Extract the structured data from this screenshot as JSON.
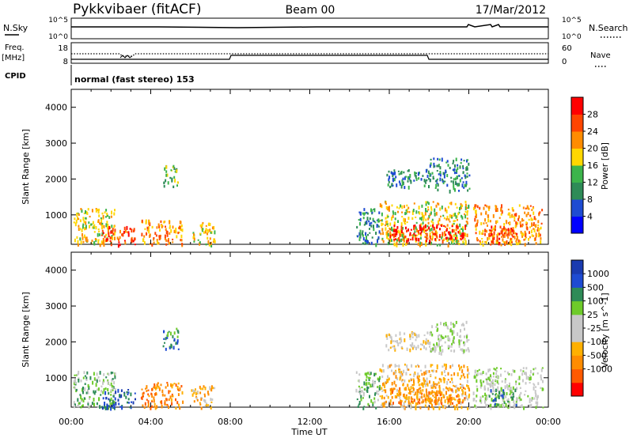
{
  "header": {
    "station": "Pykkvibaer (fitACF)",
    "beam": "Beam 00",
    "date": "17/Mar/2012"
  },
  "panels": {
    "nsky_label": "N.Sky",
    "nsearch_label": "N.Search",
    "nsky_ticks": [
      "10^5",
      "10^0"
    ],
    "nsearch_ticks": [
      "10^5",
      "10^0"
    ],
    "freq_label": "Freq.",
    "freq_unit": "[MHz]",
    "freq_ticks": [
      "18",
      "8"
    ],
    "nave_label": "Nave",
    "nave_ticks": [
      "60",
      "0"
    ],
    "cpid_label": "CPID",
    "cpid_text": "normal (fast stereo) 153"
  },
  "colors": {
    "power": [
      "#0000ff",
      "#1e4bd2",
      "#2e8b57",
      "#3cb44b",
      "#ffd700",
      "#ff8c00",
      "#ff4500",
      "#ff0000"
    ],
    "velocity": [
      "#ff0000",
      "#ff5a00",
      "#ff8c00",
      "#ffb000",
      "#c8c8c8",
      "#c8c8c8",
      "#6ecb2a",
      "#2e8b57",
      "#1e4bd2",
      "#1a3bb0"
    ]
  },
  "chart_data": [
    {
      "type": "heatmap",
      "panel": "power",
      "xlabel": "",
      "ylabel": "Slant Range [km]",
      "ylim": [
        180,
        4500
      ],
      "yticks": [
        "1000",
        "2000",
        "3000",
        "4000"
      ],
      "colorbar_label": "Power [dB]",
      "colorbar_ticks": [
        "4",
        "8",
        "12",
        "16",
        "20",
        "24",
        "28"
      ],
      "blobs": [
        {
          "t0": 0.1,
          "t1": 2.2,
          "r0": 180,
          "r1": 1200,
          "level": 4
        },
        {
          "t0": 1.5,
          "t1": 3.2,
          "r0": 180,
          "r1": 700,
          "level": 6
        },
        {
          "t0": 3.5,
          "t1": 5.6,
          "r0": 180,
          "r1": 900,
          "level": 5
        },
        {
          "t0": 4.6,
          "t1": 5.4,
          "r0": 1800,
          "r1": 2400,
          "level": 3
        },
        {
          "t0": 6.0,
          "t1": 7.2,
          "r0": 180,
          "r1": 800,
          "level": 4
        },
        {
          "t0": 14.3,
          "t1": 15.5,
          "r0": 180,
          "r1": 1200,
          "level": 2
        },
        {
          "t0": 15.5,
          "t1": 20.0,
          "r0": 180,
          "r1": 1400,
          "level": 4
        },
        {
          "t0": 16.0,
          "t1": 19.8,
          "r0": 300,
          "r1": 750,
          "level": 7
        },
        {
          "t0": 15.8,
          "t1": 18.0,
          "r0": 1800,
          "r1": 2300,
          "level": 2
        },
        {
          "t0": 18.0,
          "t1": 20.0,
          "r0": 1700,
          "r1": 2600,
          "level": 2
        },
        {
          "t0": 20.2,
          "t1": 23.7,
          "r0": 180,
          "r1": 1300,
          "level": 5
        },
        {
          "t0": 21.0,
          "t1": 22.4,
          "r0": 250,
          "r1": 700,
          "level": 6
        }
      ]
    },
    {
      "type": "heatmap",
      "panel": "velocity",
      "xlabel": "Time UT",
      "ylabel": "Slant Range [km]",
      "ylim": [
        180,
        4500
      ],
      "yticks": [
        "1000",
        "2000",
        "3000",
        "4000"
      ],
      "xticks": [
        "00:00",
        "04:00",
        "08:00",
        "12:00",
        "16:00",
        "20:00",
        "00:00"
      ],
      "colorbar_label": "Velocity [m s^-1]",
      "colorbar_ticks": [
        "1000",
        "500",
        "100",
        "25",
        "-25",
        "-100",
        "-500",
        "-1000"
      ],
      "blobs": [
        {
          "t0": 0.1,
          "t1": 2.2,
          "r0": 180,
          "r1": 1200,
          "level": 6
        },
        {
          "t0": 1.5,
          "t1": 3.2,
          "r0": 180,
          "r1": 700,
          "level": 8
        },
        {
          "t0": 3.5,
          "t1": 5.6,
          "r0": 180,
          "r1": 900,
          "level": 2
        },
        {
          "t0": 4.6,
          "t1": 5.4,
          "r0": 1800,
          "r1": 2400,
          "level": 7
        },
        {
          "t0": 6.0,
          "t1": 7.2,
          "r0": 180,
          "r1": 800,
          "level": 3
        },
        {
          "t0": 14.3,
          "t1": 15.5,
          "r0": 180,
          "r1": 1200,
          "level": 6
        },
        {
          "t0": 15.5,
          "t1": 20.0,
          "r0": 180,
          "r1": 1400,
          "level": 3
        },
        {
          "t0": 16.0,
          "t1": 19.8,
          "r0": 300,
          "r1": 750,
          "level": 2
        },
        {
          "t0": 15.8,
          "t1": 18.0,
          "r0": 1800,
          "r1": 2300,
          "level": 4
        },
        {
          "t0": 18.0,
          "t1": 20.0,
          "r0": 1700,
          "r1": 2600,
          "level": 5
        },
        {
          "t0": 20.2,
          "t1": 23.7,
          "r0": 180,
          "r1": 1300,
          "level": 5
        },
        {
          "t0": 21.0,
          "t1": 22.4,
          "r0": 250,
          "r1": 700,
          "level": 7
        }
      ]
    }
  ]
}
